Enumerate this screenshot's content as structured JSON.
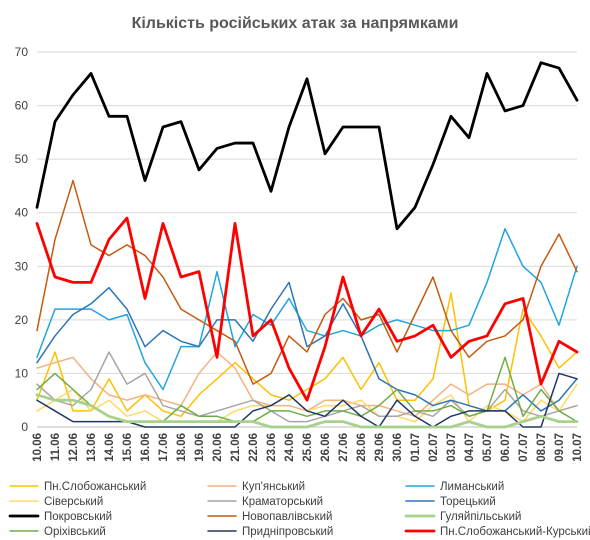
{
  "chart_data": {
    "type": "line",
    "title": "Кількість російських атак за напрямками",
    "xlabel": "",
    "ylabel": "",
    "ylim": [
      0,
      70
    ],
    "yticks": [
      0,
      10,
      20,
      30,
      40,
      50,
      60,
      70
    ],
    "grid": true,
    "legend_position": "bottom",
    "x": [
      "10.06",
      "11.06",
      "12.06",
      "13.06",
      "14.06",
      "15.06",
      "16.06",
      "17.06",
      "18.06",
      "19.06",
      "20.06",
      "21.06",
      "22.06",
      "23.06",
      "24.06",
      "25.06",
      "26.06",
      "27.06",
      "28.06",
      "29.06",
      "30.06",
      "01.07",
      "02.07",
      "03.07",
      "04.07",
      "05.07",
      "06.07",
      "07.07",
      "08.07",
      "09.07",
      "10.07"
    ],
    "series": [
      {
        "name": "Пн.Слобожанський",
        "color": "#FFC000",
        "width": 1.5,
        "values": [
          5,
          14,
          3,
          3,
          9,
          3,
          6,
          3,
          2,
          6,
          9,
          12,
          9,
          6,
          5,
          7,
          9,
          13,
          7,
          12,
          5,
          5,
          9,
          25,
          4,
          3,
          5,
          22,
          17,
          11,
          14
        ]
      },
      {
        "name": "Куп'янський",
        "color": "#F4B183",
        "width": 1.5,
        "values": [
          11,
          12,
          13,
          9,
          6,
          5,
          6,
          5,
          4,
          10,
          14,
          11,
          5,
          4,
          4,
          3,
          5,
          5,
          4,
          4,
          3,
          2,
          5,
          8,
          6,
          8,
          8,
          6,
          8,
          3,
          4
        ]
      },
      {
        "name": "Лиманський",
        "color": "#1FA5E0",
        "width": 1.5,
        "values": [
          13,
          22,
          22,
          22,
          20,
          21,
          12,
          7,
          15,
          15,
          29,
          15,
          21,
          19,
          24,
          18,
          17,
          18,
          17,
          19,
          20,
          19,
          18,
          18,
          19,
          27,
          37,
          30,
          27,
          19,
          30
        ]
      },
      {
        "name": "Сіверський",
        "color": "#FFD966",
        "width": 1.5,
        "values": [
          3,
          5,
          7,
          3,
          5,
          2,
          3,
          1,
          1,
          1,
          1,
          3,
          4,
          4,
          6,
          3,
          4,
          4,
          5,
          2,
          2,
          1,
          4,
          6,
          1,
          4,
          3,
          1,
          5,
          3,
          8
        ]
      },
      {
        "name": "Краматорський",
        "color": "#A6A6A6",
        "width": 1.5,
        "values": [
          8,
          5,
          4,
          7,
          14,
          8,
          10,
          4,
          3,
          2,
          3,
          4,
          5,
          3,
          1,
          1,
          2,
          3,
          4,
          2,
          2,
          3,
          2,
          5,
          2,
          3,
          7,
          3,
          2,
          3,
          4
        ]
      },
      {
        "name": "Торецький",
        "color": "#2E75B6",
        "width": 1.5,
        "values": [
          12,
          17,
          21,
          23,
          26,
          22,
          15,
          18,
          16,
          15,
          20,
          20,
          16,
          22,
          27,
          15,
          17,
          23,
          17,
          9,
          7,
          6,
          4,
          5,
          4,
          3,
          3,
          6,
          3,
          5,
          9
        ]
      },
      {
        "name": "Покровський",
        "color": "#000000",
        "width": 2.8,
        "values": [
          41,
          57,
          62,
          66,
          58,
          58,
          46,
          56,
          57,
          48,
          52,
          53,
          53,
          44,
          56,
          65,
          51,
          56,
          56,
          56,
          37,
          41,
          49,
          58,
          54,
          66,
          59,
          60,
          68,
          67,
          61
        ]
      },
      {
        "name": "Новопавлівський",
        "color": "#C55A11",
        "width": 1.5,
        "values": [
          18,
          35,
          46,
          34,
          32,
          34,
          32,
          28,
          22,
          20,
          18,
          16,
          8,
          10,
          17,
          14,
          21,
          24,
          20,
          21,
          14,
          21,
          28,
          18,
          13,
          16,
          17,
          20,
          30,
          36,
          29
        ]
      },
      {
        "name": "Гуляйпільський",
        "color": "#A9D18E",
        "width": 2.8,
        "values": [
          6,
          5,
          5,
          4,
          2,
          1,
          1,
          1,
          1,
          1,
          1,
          1,
          1,
          0,
          0,
          0,
          1,
          1,
          0,
          0,
          0,
          0,
          0,
          0,
          1,
          0,
          0,
          1,
          2,
          1,
          1
        ]
      },
      {
        "name": "Оріхівський",
        "color": "#70AD47",
        "width": 1.5,
        "values": [
          7,
          10,
          7,
          4,
          2,
          1,
          1,
          1,
          4,
          2,
          2,
          1,
          1,
          3,
          3,
          2,
          3,
          3,
          2,
          4,
          7,
          3,
          3,
          4,
          2,
          3,
          13,
          2,
          7,
          3,
          1
        ]
      },
      {
        "name": "Придніпровський",
        "color": "#1F3864",
        "width": 1.5,
        "values": [
          5,
          3,
          1,
          1,
          1,
          1,
          0,
          0,
          0,
          0,
          0,
          0,
          3,
          4,
          6,
          3,
          2,
          5,
          2,
          0,
          5,
          2,
          0,
          2,
          3,
          3,
          3,
          0,
          0,
          10,
          9
        ]
      },
      {
        "name": "Пн.Слобожанський-Курський",
        "color": "#FF0000",
        "width": 2.8,
        "values": [
          38,
          28,
          27,
          27,
          35,
          39,
          24,
          38,
          28,
          29,
          13,
          38,
          17,
          20,
          11,
          5,
          15,
          28,
          17,
          22,
          16,
          17,
          19,
          13,
          16,
          17,
          23,
          24,
          8,
          16,
          14
        ]
      }
    ]
  }
}
